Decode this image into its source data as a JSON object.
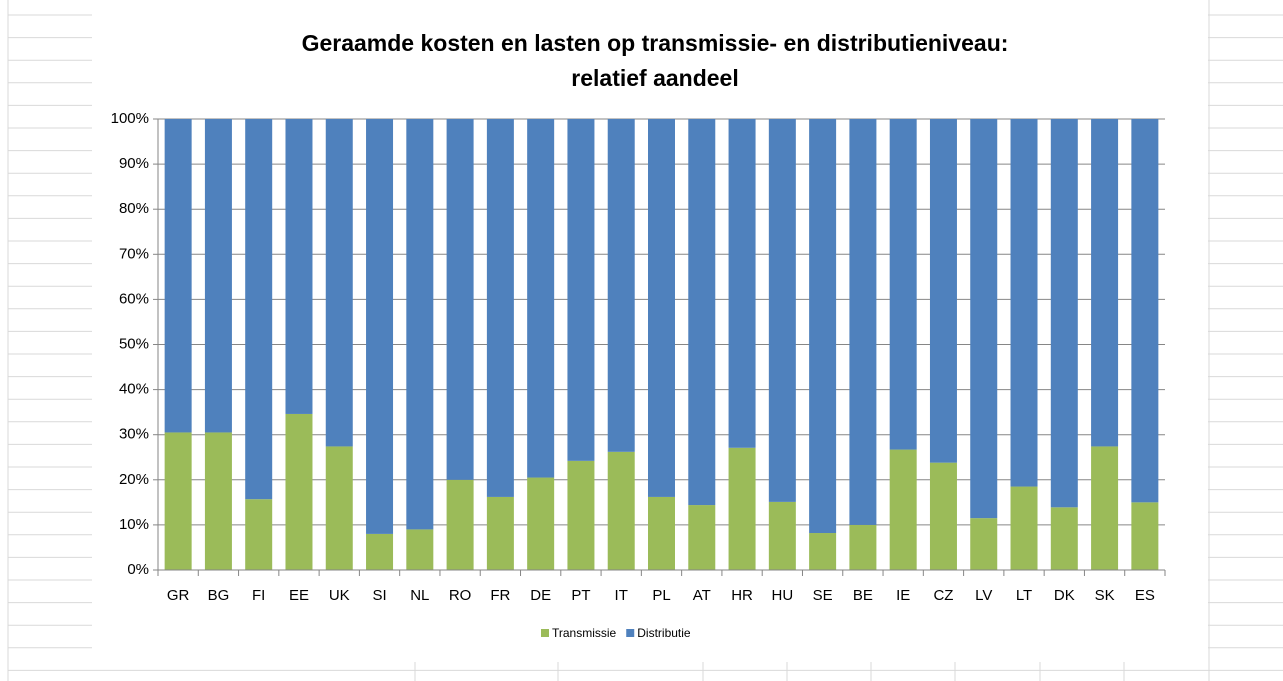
{
  "chart_data": {
    "type": "stacked_bar",
    "title": [
      "Geraamde kosten en lasten op transmissie- en distributieniveau:",
      "relatief aandeel"
    ],
    "categories": [
      "GR",
      "BG",
      "FI",
      "EE",
      "UK",
      "SI",
      "NL",
      "RO",
      "FR",
      "DE",
      "PT",
      "IT",
      "PL",
      "AT",
      "HR",
      "HU",
      "SE",
      "BE",
      "IE",
      "CZ",
      "LV",
      "LT",
      "DK",
      "SK",
      "ES"
    ],
    "series": [
      {
        "name": "Transmissie",
        "color": "#9bbb59",
        "values": [
          30.5,
          30.5,
          15.7,
          34.6,
          27.4,
          8,
          9,
          20,
          16.2,
          20.5,
          24.2,
          26.2,
          16.2,
          14.4,
          27.1,
          15.1,
          8.2,
          10,
          26.7,
          23.8,
          11.5,
          18.5,
          13.9,
          27.4,
          15
        ]
      },
      {
        "name": "Distributie",
        "color": "#4f81bd",
        "values": [
          69.5,
          69.5,
          84.3,
          65.4,
          72.6,
          92,
          91,
          80,
          83.8,
          79.5,
          75.8,
          73.8,
          83.8,
          85.6,
          72.9,
          84.9,
          91.8,
          90,
          73.3,
          76.2,
          88.5,
          81.5,
          86.1,
          72.6,
          85
        ]
      }
    ],
    "ylim": [
      0,
      100
    ],
    "yticks": [
      {
        "value": 0,
        "label": "0%"
      },
      {
        "value": 10,
        "label": "10%"
      },
      {
        "value": 20,
        "label": "20%"
      },
      {
        "value": 30,
        "label": "30%"
      },
      {
        "value": 40,
        "label": "40%"
      },
      {
        "value": 50,
        "label": "50%"
      },
      {
        "value": 60,
        "label": "60%"
      },
      {
        "value": 70,
        "label": "70%"
      },
      {
        "value": 80,
        "label": "80%"
      },
      {
        "value": 90,
        "label": "90%"
      },
      {
        "value": 100,
        "label": "100%"
      }
    ],
    "grid": true,
    "legend": "bottom"
  }
}
